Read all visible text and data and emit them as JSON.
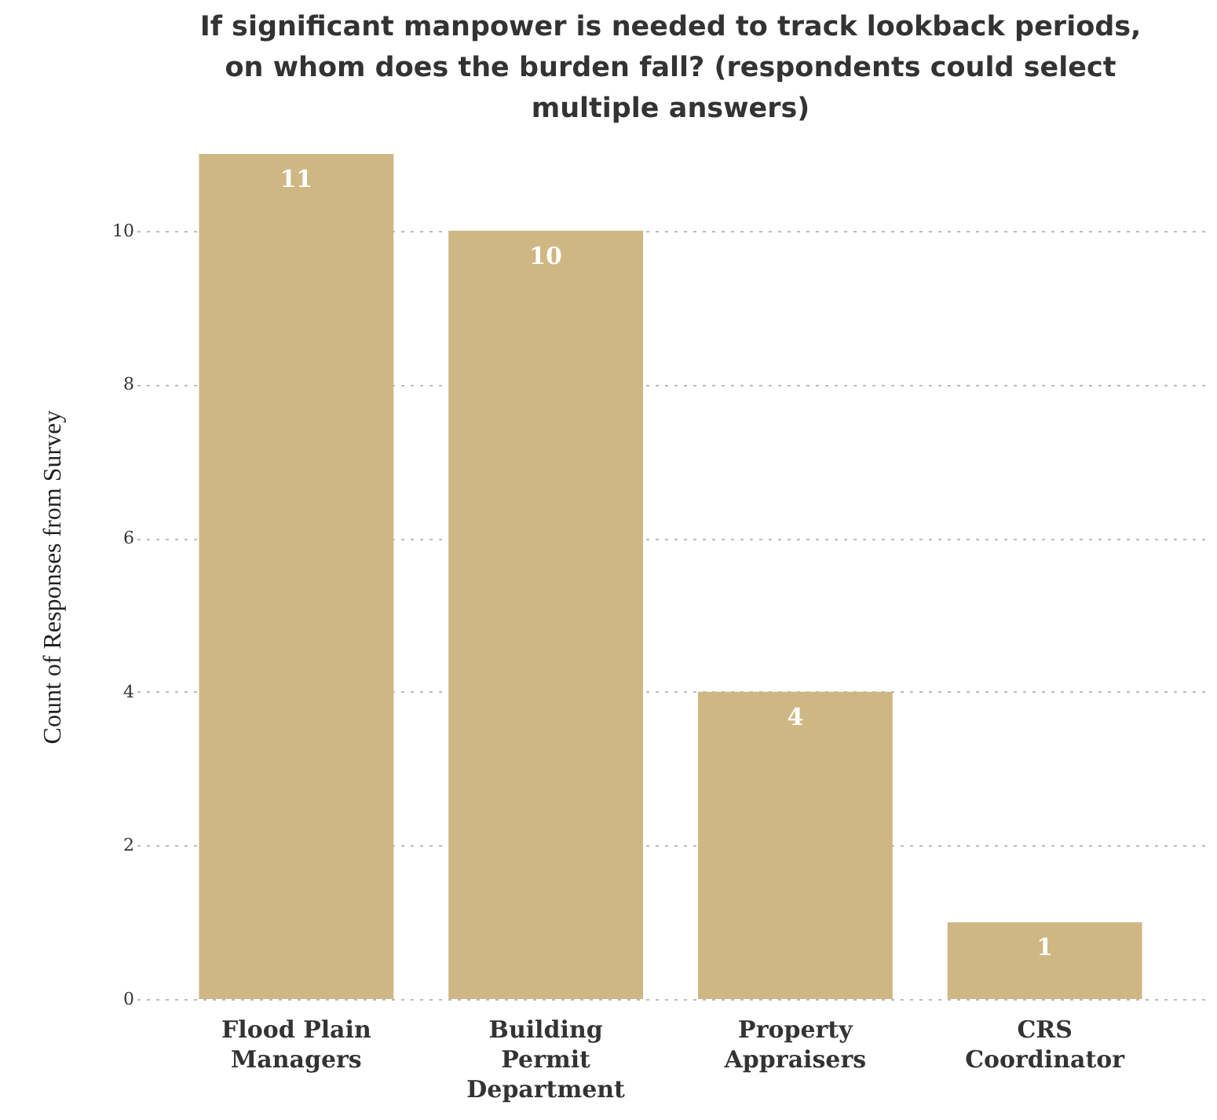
{
  "chart_data": {
    "type": "bar",
    "title": "If significant manpower is needed to track lookback periods, on whom does the burden fall? (respondents could select multiple answers)",
    "ylabel": "Count of Responses from Survey",
    "categories": [
      "Flood Plain Managers",
      "Building Permit Department",
      "Property Appraisers",
      "CRS Coordinator"
    ],
    "values": [
      11,
      10,
      4,
      1
    ],
    "color": "#cfb784",
    "ylim": [
      0,
      11
    ],
    "yticks": [
      0,
      2,
      4,
      6,
      8,
      10
    ],
    "grid": "y",
    "data_labels": true
  }
}
